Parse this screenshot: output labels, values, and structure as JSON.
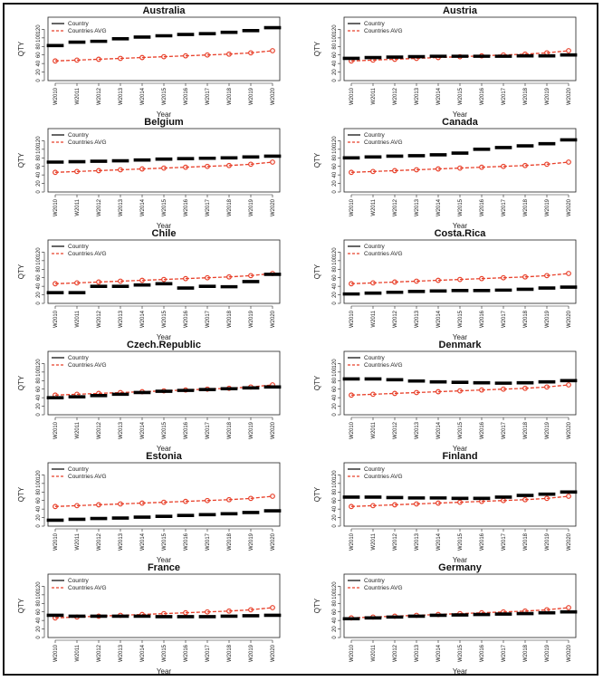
{
  "chart_data": {
    "type": "line",
    "xlabel": "Year",
    "ylabel": "QTY",
    "ylim": [
      0,
      140
    ],
    "yticks": [
      0,
      20,
      40,
      60,
      80,
      100,
      120
    ],
    "x": [
      "W2010",
      "W2011",
      "W2012",
      "W2013",
      "W2014",
      "W2015",
      "W2016",
      "W2017",
      "W2018",
      "W2019",
      "W2020"
    ],
    "legend": {
      "country": "Country",
      "avg": "Countries AVG",
      "position": "top-left"
    },
    "colors": {
      "country": "#000000",
      "avg": "#e8402a"
    },
    "panels": [
      {
        "title": "Australia",
        "country": [
          82,
          90,
          92,
          98,
          102,
          105,
          108,
          110,
          113,
          117,
          124
        ],
        "avg": [
          46,
          48,
          50,
          52,
          54,
          56,
          58,
          60,
          62,
          65,
          70
        ]
      },
      {
        "title": "Austria",
        "country": [
          52,
          54,
          55,
          56,
          57,
          57,
          57,
          57,
          58,
          58,
          60
        ],
        "avg": [
          46,
          48,
          50,
          52,
          54,
          56,
          58,
          60,
          62,
          65,
          70
        ]
      },
      {
        "title": "Belgium",
        "country": [
          70,
          71,
          72,
          73,
          75,
          77,
          78,
          79,
          80,
          82,
          84
        ],
        "avg": [
          46,
          48,
          50,
          52,
          54,
          56,
          58,
          60,
          62,
          65,
          70
        ]
      },
      {
        "title": "Canada",
        "country": [
          80,
          82,
          84,
          85,
          87,
          91,
          100,
          104,
          108,
          113,
          122
        ],
        "avg": [
          46,
          48,
          50,
          52,
          54,
          56,
          58,
          60,
          62,
          65,
          70
        ]
      },
      {
        "title": "Chile",
        "country": [
          25,
          25,
          40,
          40,
          43,
          46,
          36,
          40,
          39,
          51,
          68
        ],
        "avg": [
          46,
          48,
          50,
          52,
          54,
          56,
          58,
          60,
          62,
          65,
          70
        ]
      },
      {
        "title": "Costa.Rica",
        "country": [
          22,
          24,
          26,
          28,
          29,
          30,
          30,
          31,
          33,
          36,
          38
        ],
        "avg": [
          46,
          48,
          50,
          52,
          54,
          56,
          58,
          60,
          62,
          65,
          70
        ]
      },
      {
        "title": "Czech.Republic",
        "country": [
          40,
          42,
          45,
          48,
          52,
          55,
          57,
          59,
          61,
          63,
          65
        ],
        "avg": [
          46,
          48,
          50,
          52,
          54,
          56,
          58,
          60,
          62,
          65,
          70
        ]
      },
      {
        "title": "Denmark",
        "country": [
          84,
          84,
          82,
          79,
          77,
          76,
          75,
          74,
          75,
          77,
          80
        ],
        "avg": [
          46,
          48,
          50,
          52,
          54,
          56,
          58,
          60,
          62,
          65,
          70
        ]
      },
      {
        "title": "Estonia",
        "country": [
          14,
          16,
          18,
          19,
          21,
          23,
          25,
          27,
          29,
          32,
          36
        ],
        "avg": [
          46,
          48,
          50,
          52,
          54,
          56,
          58,
          60,
          62,
          65,
          70
        ]
      },
      {
        "title": "Finland",
        "country": [
          68,
          68,
          67,
          66,
          66,
          65,
          65,
          68,
          72,
          75,
          80
        ],
        "avg": [
          46,
          48,
          50,
          52,
          54,
          56,
          58,
          60,
          62,
          65,
          70
        ]
      },
      {
        "title": "France",
        "country": [
          52,
          50,
          50,
          50,
          50,
          49,
          49,
          49,
          50,
          51,
          52
        ],
        "avg": [
          46,
          48,
          50,
          52,
          54,
          56,
          58,
          60,
          62,
          65,
          70
        ]
      },
      {
        "title": "Germany",
        "country": [
          44,
          46,
          48,
          50,
          52,
          53,
          54,
          55,
          56,
          58,
          60
        ],
        "avg": [
          46,
          48,
          50,
          52,
          54,
          56,
          58,
          60,
          62,
          65,
          70
        ]
      }
    ]
  }
}
